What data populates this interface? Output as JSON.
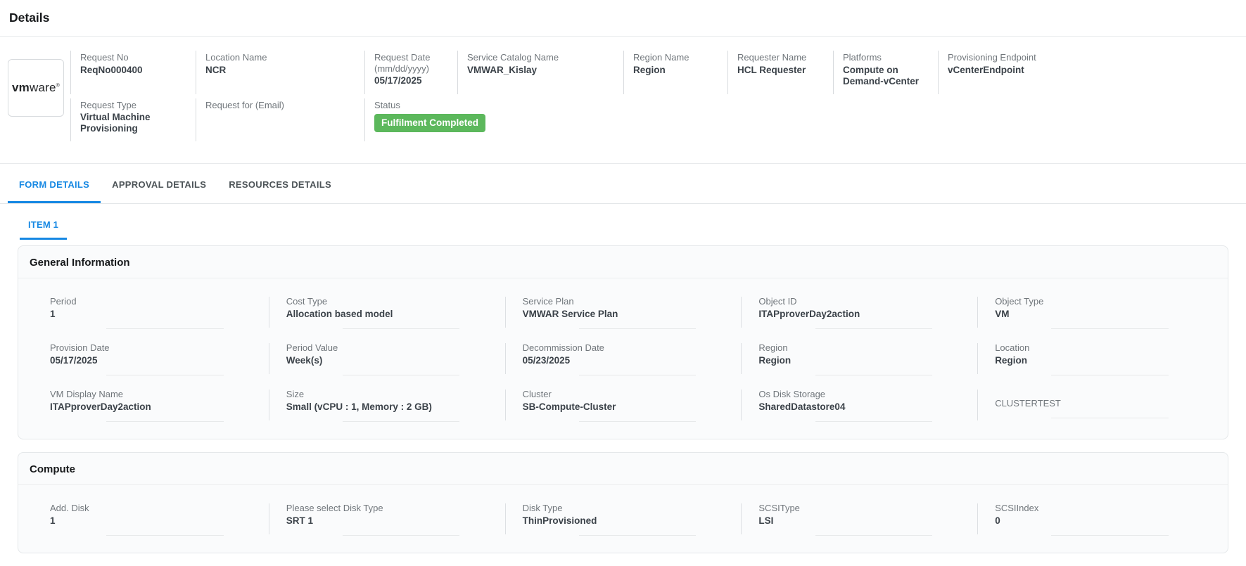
{
  "page": {
    "title": "Details"
  },
  "logo": {
    "bold": "vm",
    "rest": "ware",
    "reg": "®"
  },
  "header": {
    "row1": [
      {
        "label": "Request No",
        "value": "ReqNo000400"
      },
      {
        "label": "Location Name",
        "value": "NCR"
      },
      {
        "label": "Request Date (mm/dd/yyyy)",
        "value": "05/17/2025"
      },
      {
        "label": "Service Catalog Name",
        "value": "VMWAR_Kislay"
      },
      {
        "label": "Region Name",
        "value": "Region"
      },
      {
        "label": "Requester Name",
        "value": "HCL Requester"
      },
      {
        "label": "Platforms",
        "value": "Compute on Demand-vCenter"
      },
      {
        "label": "Provisioning Endpoint",
        "value": "vCenterEndpoint"
      }
    ],
    "row2": {
      "request_type": {
        "label": "Request Type",
        "value": "Virtual Machine Provisioning"
      },
      "request_for": {
        "label": "Request for (Email)",
        "value": ""
      },
      "status": {
        "label": "Status",
        "value": "Fulfilment Completed"
      }
    }
  },
  "tabs": {
    "form_details": "FORM DETAILS",
    "approval_details": "APPROVAL DETAILS",
    "resources_details": "RESOURCES DETAILS",
    "item_tab": "ITEM 1"
  },
  "general_information": {
    "title": "General Information",
    "fields": [
      {
        "label": "Period",
        "value": "1"
      },
      {
        "label": "Cost Type",
        "value": "Allocation based model"
      },
      {
        "label": "Service Plan",
        "value": "VMWAR Service Plan"
      },
      {
        "label": "Object ID",
        "value": "ITAPproverDay2action"
      },
      {
        "label": "Object Type",
        "value": "VM"
      },
      {
        "label": "Provision Date",
        "value": "05/17/2025"
      },
      {
        "label": "Period Value",
        "value": "Week(s)"
      },
      {
        "label": "Decommission Date",
        "value": "05/23/2025"
      },
      {
        "label": "Region",
        "value": "Region"
      },
      {
        "label": "Location",
        "value": "Region"
      },
      {
        "label": "VM Display Name",
        "value": "ITAPproverDay2action"
      },
      {
        "label": "Size",
        "value": "Small (vCPU : 1, Memory : 2 GB)"
      },
      {
        "label": "Cluster",
        "value": "SB-Compute-Cluster"
      },
      {
        "label": "Os Disk Storage",
        "value": "SharedDatastore04"
      },
      {
        "label": "CLUSTERTEST",
        "value": ""
      }
    ]
  },
  "compute": {
    "title": "Compute",
    "fields": [
      {
        "label": "Add. Disk",
        "value": "1"
      },
      {
        "label": "Please select Disk Type",
        "value": "SRT 1"
      },
      {
        "label": "Disk Type",
        "value": "ThinProvisioned"
      },
      {
        "label": "SCSIType",
        "value": "LSI"
      },
      {
        "label": "SCSIIndex",
        "value": "0"
      }
    ]
  },
  "colors": {
    "accent_blue": "#1688e3",
    "status_green": "#5cb85c"
  }
}
